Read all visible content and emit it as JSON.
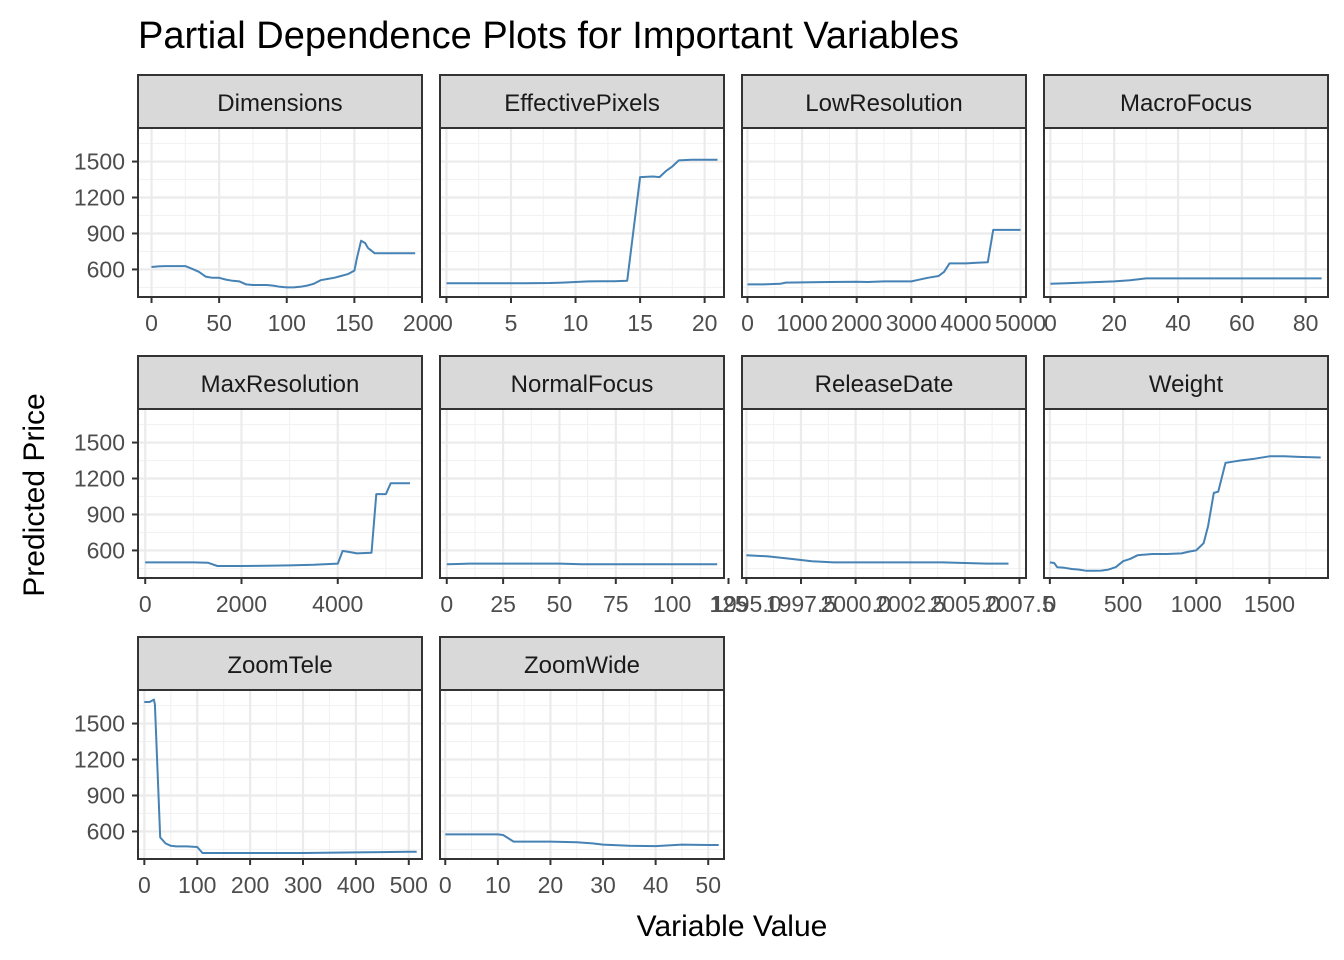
{
  "chart_data": {
    "type": "line",
    "title": "Partial Dependence Plots for Important Variables",
    "xlabel": "Variable Value",
    "ylabel": "Predicted Price",
    "ylim": [
      370,
      1780
    ],
    "y_ticks": [
      "600",
      "900",
      "1200",
      "1500"
    ],
    "y_tick_values": [
      600,
      900,
      1200,
      1500
    ],
    "grid": true,
    "line_color": "#4682b4",
    "strip_fill": "#d9d9d9",
    "panels": [
      {
        "name": "Dimensions",
        "xlim": [
          -10,
          200
        ],
        "x_ticks": [
          "0",
          "50",
          "100",
          "150",
          "200"
        ],
        "x_tick_values": [
          0,
          50,
          100,
          150,
          200
        ],
        "x": [
          0,
          5,
          10,
          15,
          20,
          25,
          30,
          35,
          40,
          45,
          50,
          55,
          60,
          65,
          70,
          75,
          80,
          85,
          90,
          95,
          100,
          105,
          110,
          115,
          120,
          125,
          130,
          135,
          140,
          145,
          150,
          152,
          155,
          158,
          160,
          165,
          170,
          180,
          190,
          195
        ],
        "y": [
          620,
          625,
          628,
          628,
          628,
          628,
          605,
          580,
          540,
          530,
          530,
          515,
          505,
          500,
          475,
          470,
          470,
          470,
          465,
          455,
          450,
          450,
          455,
          465,
          480,
          510,
          520,
          530,
          545,
          560,
          590,
          700,
          840,
          820,
          780,
          735,
          735,
          735,
          735,
          735
        ]
      },
      {
        "name": "EffectivePixels",
        "xlim": [
          -0.5,
          21.5
        ],
        "x_ticks": [
          "0",
          "5",
          "10",
          "15",
          "20"
        ],
        "x_tick_values": [
          0,
          5,
          10,
          15,
          20
        ],
        "x": [
          0,
          2,
          4,
          6,
          8,
          9,
          10,
          11,
          12,
          13,
          14,
          15,
          16,
          16.5,
          17,
          17.5,
          18,
          19,
          20,
          21
        ],
        "y": [
          485,
          485,
          485,
          485,
          487,
          490,
          495,
          500,
          502,
          502,
          505,
          1370,
          1375,
          1370,
          1420,
          1460,
          1510,
          1515,
          1515,
          1515
        ]
      },
      {
        "name": "LowResolution",
        "xlim": [
          -100,
          5100
        ],
        "x_ticks": [
          "0",
          "1000",
          "2000",
          "3000",
          "4000",
          "5000"
        ],
        "x_tick_values": [
          0,
          1000,
          2000,
          3000,
          4000,
          5000
        ],
        "x": [
          0,
          300,
          600,
          700,
          1000,
          1500,
          2000,
          2200,
          2500,
          3000,
          3100,
          3300,
          3500,
          3600,
          3700,
          4000,
          4200,
          4400,
          4500,
          4600,
          5000
        ],
        "y": [
          475,
          475,
          480,
          490,
          492,
          495,
          497,
          495,
          500,
          500,
          510,
          530,
          545,
          580,
          650,
          650,
          655,
          660,
          930,
          930,
          930
        ]
      },
      {
        "name": "MacroFocus",
        "xlim": [
          -2,
          87
        ],
        "x_ticks": [
          "0",
          "20",
          "40",
          "60",
          "80"
        ],
        "x_tick_values": [
          0,
          20,
          40,
          60,
          80
        ],
        "x": [
          0,
          5,
          10,
          15,
          20,
          25,
          30,
          40,
          50,
          60,
          70,
          80,
          85
        ],
        "y": [
          480,
          485,
          490,
          495,
          500,
          510,
          525,
          525,
          525,
          525,
          525,
          525,
          525
        ]
      },
      {
        "name": "MaxResolution",
        "xlim": [
          -150,
          5750
        ],
        "x_ticks": [
          "0",
          "2000",
          "4000"
        ],
        "x_tick_values": [
          0,
          2000,
          4000
        ],
        "x": [
          0,
          500,
          1000,
          1300,
          1500,
          2000,
          2500,
          3000,
          3500,
          4000,
          4100,
          4200,
          4400,
          4700,
          4800,
          5000,
          5100,
          5500
        ],
        "y": [
          500,
          500,
          500,
          498,
          470,
          470,
          472,
          475,
          480,
          490,
          595,
          590,
          575,
          580,
          1070,
          1070,
          1160,
          1160
        ]
      },
      {
        "name": "NormalFocus",
        "xlim": [
          -3,
          123
        ],
        "x_ticks": [
          "0",
          "25",
          "50",
          "75",
          "100",
          "125"
        ],
        "x_tick_values": [
          0,
          25,
          50,
          75,
          100,
          125
        ],
        "x": [
          0,
          5,
          10,
          25,
          50,
          60,
          75,
          100,
          120
        ],
        "y": [
          485,
          487,
          490,
          490,
          490,
          485,
          485,
          485,
          485
        ]
      },
      {
        "name": "ReleaseDate",
        "xlim": [
          1994.8,
          2007.8
        ],
        "x_ticks": [
          "1995.0",
          "1997.5",
          "2000.0",
          "2002.5",
          "2005.0",
          "2007.5"
        ],
        "x_tick_values": [
          1995.0,
          1997.5,
          2000.0,
          2002.5,
          2005.0,
          2007.5
        ],
        "x": [
          1995,
          1996,
          1997,
          1998,
          1999,
          2000,
          2001,
          2002,
          2003,
          2004,
          2005,
          2006,
          2007
        ],
        "y": [
          560,
          550,
          530,
          510,
          500,
          500,
          500,
          500,
          500,
          500,
          495,
          490,
          490
        ]
      },
      {
        "name": "Weight",
        "xlim": [
          -40,
          1900
        ],
        "x_ticks": [
          "0",
          "500",
          "1000",
          "1500"
        ],
        "x_tick_values": [
          0,
          500,
          1000,
          1500
        ],
        "x": [
          0,
          30,
          50,
          100,
          150,
          200,
          250,
          300,
          350,
          400,
          450,
          500,
          550,
          600,
          650,
          700,
          800,
          900,
          950,
          1000,
          1050,
          1080,
          1120,
          1150,
          1200,
          1250,
          1300,
          1400,
          1500,
          1600,
          1700,
          1850
        ],
        "y": [
          500,
          495,
          460,
          455,
          445,
          440,
          430,
          430,
          432,
          440,
          460,
          510,
          530,
          560,
          565,
          570,
          570,
          575,
          590,
          600,
          660,
          800,
          1080,
          1090,
          1330,
          1340,
          1350,
          1365,
          1385,
          1385,
          1380,
          1375
        ]
      },
      {
        "name": "ZoomTele",
        "xlim": [
          -12,
          525
        ],
        "x_ticks": [
          "0",
          "100",
          "200",
          "300",
          "400",
          "500"
        ],
        "x_tick_values": [
          0,
          100,
          200,
          300,
          400,
          500
        ],
        "x": [
          0,
          10,
          18,
          20,
          30,
          40,
          50,
          60,
          80,
          100,
          110,
          200,
          300,
          400,
          500,
          515
        ],
        "y": [
          1680,
          1680,
          1700,
          1660,
          550,
          500,
          480,
          475,
          475,
          470,
          420,
          420,
          420,
          425,
          430,
          430
        ]
      },
      {
        "name": "ZoomWide",
        "xlim": [
          -1,
          53
        ],
        "x_ticks": [
          "0",
          "10",
          "20",
          "30",
          "40",
          "50"
        ],
        "x_tick_values": [
          0,
          10,
          20,
          30,
          40,
          50
        ],
        "x": [
          0,
          5,
          10,
          11,
          13,
          15,
          20,
          25,
          28,
          30,
          35,
          40,
          45,
          50,
          52
        ],
        "y": [
          575,
          575,
          575,
          570,
          515,
          515,
          515,
          510,
          500,
          490,
          480,
          478,
          490,
          487,
          487
        ]
      }
    ]
  }
}
